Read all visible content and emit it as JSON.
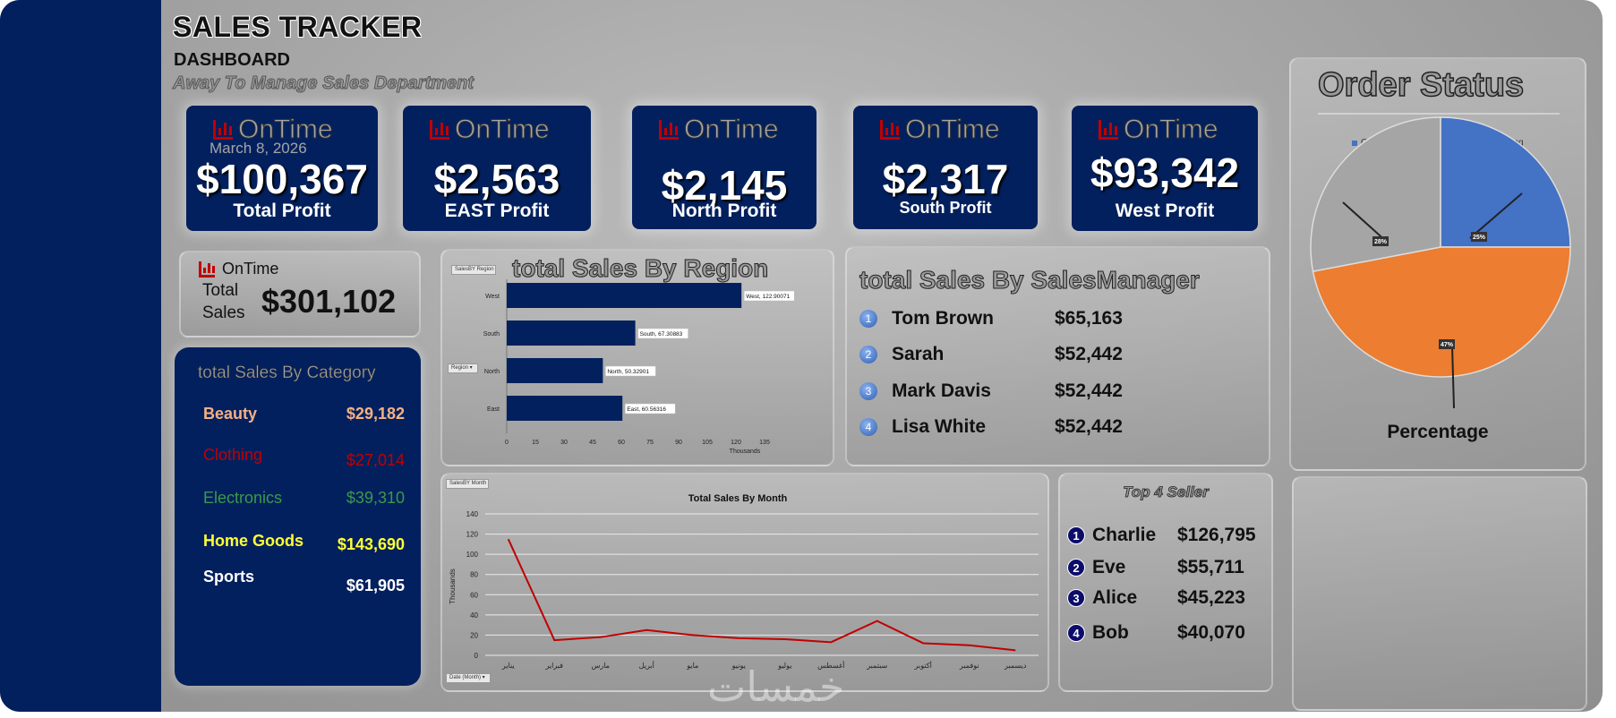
{
  "header": {
    "title": "SALES TRACKER",
    "subtitle": "DASHBOARD",
    "tagline": "Away To Manage Sales Department"
  },
  "kpis": [
    {
      "badge": "OnTime",
      "date": "March 8, 2026",
      "value": "$100,367",
      "label": "Total Profit"
    },
    {
      "badge": "OnTime",
      "value": "$2,563",
      "label": "EAST Profit"
    },
    {
      "badge": "OnTime",
      "value": "$2,145",
      "label": "North Profit"
    },
    {
      "badge": "OnTime",
      "value": "$2,317",
      "label": "South  Profit"
    },
    {
      "badge": "OnTime",
      "value": "$93,342",
      "label": "West Profit"
    }
  ],
  "total_sales": {
    "badge": "OnTime",
    "label_1": "Total",
    "label_2": "Sales",
    "value": "$301,102"
  },
  "category": {
    "title": "total Sales By Category",
    "rows": [
      {
        "name": "Beauty",
        "value": "$29,182",
        "color": "#f4b183"
      },
      {
        "name": "Clothing",
        "value": "$27,014",
        "color": "#c00000"
      },
      {
        "name": "Electronics",
        "value": "$39,310",
        "color": "#3a9a4a"
      },
      {
        "name": "Home Goods",
        "value": "$143,690",
        "color": "#ffff33"
      },
      {
        "name": "Sports",
        "value": "$61,905",
        "color": "#ffffff"
      }
    ]
  },
  "region_chart": {
    "title": "total Sales By Region",
    "slicer_top": "SalesBY Region",
    "slicer_left": "Region",
    "x_unit": "Thousands",
    "x_ticks": [
      "0",
      "15",
      "30",
      "45",
      "60",
      "75",
      "90",
      "105",
      "120",
      "135"
    ]
  },
  "managers": {
    "title": "total Sales By SalesManager",
    "rows": [
      {
        "rank": "1",
        "name": "Tom Brown",
        "value": "$65,163"
      },
      {
        "rank": "2",
        "name": "Sarah",
        "value": "$52,442"
      },
      {
        "rank": "3",
        "name": "Mark Davis",
        "value": "$52,442"
      },
      {
        "rank": "4",
        "name": "Lisa White",
        "value": "$52,442"
      }
    ]
  },
  "status": {
    "title": "Order Status",
    "footer": "Percentage"
  },
  "month_chart": {
    "slicer_top": "SalesBY Month",
    "slicer_bottom": "Date (Month)",
    "y_unit": "Thousands"
  },
  "sellers": {
    "title": "Top 4 Seller",
    "rows": [
      {
        "rank": "1",
        "name": "Charlie",
        "value": "$126,795"
      },
      {
        "rank": "2",
        "name": "Eve",
        "value": "$55,711"
      },
      {
        "rank": "3",
        "name": "Alice",
        "value": "$45,223"
      },
      {
        "rank": "4",
        "name": "Bob",
        "value": "$40,070"
      }
    ]
  },
  "watermark": "خمسات",
  "chart_data": [
    {
      "type": "bar",
      "orientation": "horizontal",
      "title": "total Sales By Region",
      "categories": [
        "West",
        "South",
        "North",
        "East"
      ],
      "values": [
        122.90071,
        67.30883,
        50.32901,
        60.56316
      ],
      "data_labels": [
        "West, 122.90071",
        "South, 67.30883",
        "North, 50.32901",
        "East, 60.56316"
      ],
      "xlabel": "Thousands",
      "xlim": [
        0,
        135
      ],
      "color": "#03205e"
    },
    {
      "type": "pie",
      "title": "Order Status",
      "categories": [
        "Cancelled",
        "Completed",
        "Pending"
      ],
      "values": [
        25,
        47,
        28
      ],
      "labels": [
        "25%",
        "47%",
        "28%"
      ],
      "colors": [
        "#4472c4",
        "#ed7d31",
        "#a5a5a5"
      ],
      "legend": "top"
    },
    {
      "type": "line",
      "title": "Total Sales By Month",
      "categories": [
        "يناير",
        "فبراير",
        "مارس",
        "أبريل",
        "مايو",
        "يونيو",
        "يوليو",
        "أغسطس",
        "سبتمبر",
        "أكتوبر",
        "نوفمبر",
        "ديسمبر"
      ],
      "values": [
        115,
        15,
        18,
        25,
        20,
        17,
        16,
        13,
        34,
        12,
        10,
        5
      ],
      "ylabel": "Thousands",
      "ylim": [
        0,
        140
      ],
      "y_ticks": [
        "0",
        "20",
        "40",
        "60",
        "80",
        "100",
        "120",
        "140"
      ],
      "grid": true,
      "color": "#c00000"
    }
  ]
}
